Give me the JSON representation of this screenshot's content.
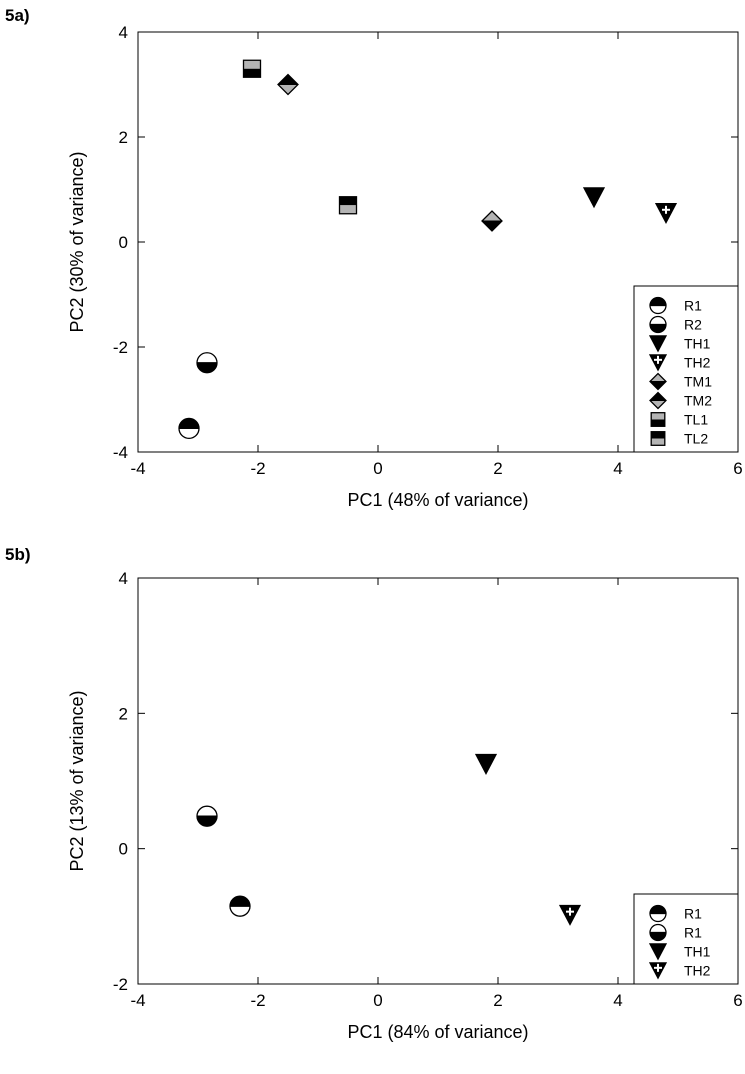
{
  "panels": {
    "a": {
      "label": "5a)"
    },
    "b": {
      "label": "5b)"
    }
  },
  "colors": {
    "black": "#000000",
    "white": "#ffffff",
    "gray": "#b4b4b4"
  },
  "chart_data": [
    {
      "type": "scatter",
      "xlabel": "PC1 (48% of variance)",
      "ylabel": "PC2 (30% of variance)",
      "xlim": [
        -4,
        6
      ],
      "ylim": [
        -4,
        4
      ],
      "xticks": [
        -4,
        -2,
        0,
        2,
        4,
        6
      ],
      "yticks": [
        -4,
        -2,
        0,
        2,
        4
      ],
      "grid": false,
      "legend_position": "lower-right",
      "series": [
        {
          "name": "R1",
          "marker": "circle-top-black",
          "points": [
            [
              -3.15,
              -3.55
            ]
          ]
        },
        {
          "name": "R2",
          "marker": "circle-bottom-black",
          "points": [
            [
              -2.85,
              -2.3
            ]
          ]
        },
        {
          "name": "TH1",
          "marker": "triangle-down-black",
          "points": [
            [
              3.6,
              0.85
            ]
          ]
        },
        {
          "name": "TH2",
          "marker": "triangle-down-cross",
          "points": [
            [
              4.8,
              0.55
            ]
          ]
        },
        {
          "name": "TM1",
          "marker": "diamond-gray-top",
          "points": [
            [
              1.9,
              0.4
            ]
          ]
        },
        {
          "name": "TM2",
          "marker": "diamond-gray-bottom",
          "points": [
            [
              -1.5,
              3.0
            ]
          ]
        },
        {
          "name": "TL1",
          "marker": "square-gray-top",
          "points": [
            [
              -2.1,
              3.3
            ]
          ]
        },
        {
          "name": "TL2",
          "marker": "square-gray-bottom",
          "points": [
            [
              -0.5,
              0.7
            ]
          ]
        }
      ]
    },
    {
      "type": "scatter",
      "xlabel": "PC1 (84% of variance)",
      "ylabel": "PC2 (13% of variance)",
      "xlim": [
        -4,
        6
      ],
      "ylim": [
        -2,
        4
      ],
      "xticks": [
        -4,
        -2,
        0,
        2,
        4,
        6
      ],
      "yticks": [
        -2,
        0,
        2,
        4
      ],
      "grid": false,
      "legend_position": "lower-right",
      "series": [
        {
          "name": "R1",
          "marker": "circle-top-black",
          "points": [
            [
              -2.3,
              -0.85
            ]
          ]
        },
        {
          "name": "R1",
          "marker": "circle-bottom-black",
          "points": [
            [
              -2.85,
              0.48
            ]
          ]
        },
        {
          "name": "TH1",
          "marker": "triangle-down-black",
          "points": [
            [
              1.8,
              1.25
            ]
          ]
        },
        {
          "name": "TH2",
          "marker": "triangle-down-cross",
          "points": [
            [
              3.2,
              -0.98
            ]
          ]
        }
      ]
    }
  ]
}
